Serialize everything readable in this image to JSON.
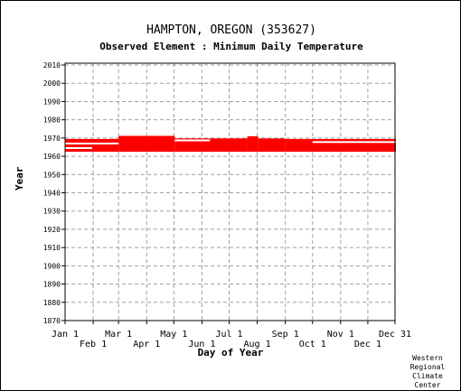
{
  "chart_data": {
    "type": "scatter",
    "title": "HAMPTON, OREGON   (353627)",
    "subtitle": "Observed Element : Minimum Daily Temperature",
    "xlabel": "Day of Year",
    "ylabel": "Year",
    "xlim": [
      1,
      365
    ],
    "ylim": [
      1870,
      2011
    ],
    "x_ticks": [
      {
        "day": 1,
        "label": "Jan 1"
      },
      {
        "day": 32,
        "label": "Feb 1"
      },
      {
        "day": 60,
        "label": "Mar 1"
      },
      {
        "day": 91,
        "label": "Apr 1"
      },
      {
        "day": 121,
        "label": "May 1"
      },
      {
        "day": 152,
        "label": "Jun 1"
      },
      {
        "day": 182,
        "label": "Jul 1"
      },
      {
        "day": 213,
        "label": "Aug 1"
      },
      {
        "day": 244,
        "label": "Sep 1"
      },
      {
        "day": 274,
        "label": "Oct 1"
      },
      {
        "day": 305,
        "label": "Nov 1"
      },
      {
        "day": 335,
        "label": "Dec 1"
      },
      {
        "day": 365,
        "label": "Dec 31"
      }
    ],
    "y_ticks": [
      1870,
      1880,
      1890,
      1900,
      1910,
      1920,
      1930,
      1940,
      1950,
      1960,
      1970,
      1980,
      1990,
      2000,
      2010
    ],
    "grid": true,
    "series_color": "#ff0000",
    "data_blocks": [
      {
        "day_start": 1,
        "day_end": 59,
        "year_start": 1962.5,
        "year_end": 1969.5
      },
      {
        "day_start": 60,
        "day_end": 121,
        "year_start": 1962.5,
        "year_end": 1971.2
      },
      {
        "day_start": 122,
        "day_end": 201,
        "year_start": 1962.5,
        "year_end": 1969.8
      },
      {
        "day_start": 202,
        "day_end": 213,
        "year_start": 1962.5,
        "year_end": 1971.0
      },
      {
        "day_start": 214,
        "day_end": 243,
        "year_start": 1962.5,
        "year_end": 1969.8
      },
      {
        "day_start": 244,
        "day_end": 365,
        "year_start": 1962.5,
        "year_end": 1969.5
      }
    ],
    "gaps": [
      {
        "day_start": 1,
        "day_end": 30,
        "year": 1964.5
      },
      {
        "day_start": 1,
        "day_end": 59,
        "year": 1967.0
      },
      {
        "day_start": 122,
        "day_end": 160,
        "year": 1968.7
      },
      {
        "day_start": 274,
        "day_end": 365,
        "year": 1967.8
      }
    ]
  },
  "credit": [
    "Western",
    "Regional",
    "Climate",
    "Center"
  ]
}
